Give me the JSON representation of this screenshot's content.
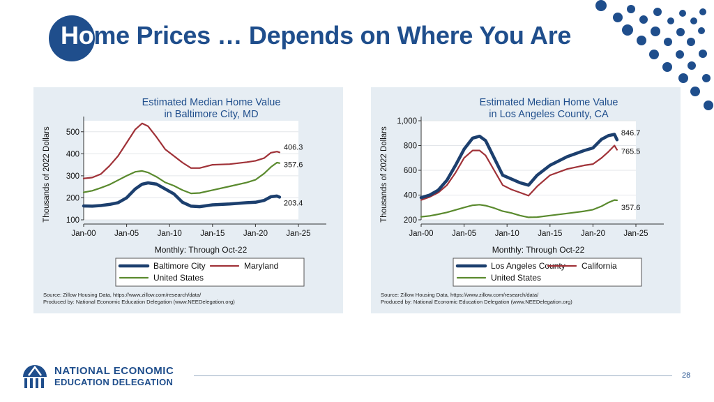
{
  "slide": {
    "title_prefix": "Ho",
    "title_rest": "me Prices … Depends on Where You Are",
    "page_number": "28",
    "org_line1": "NATIONAL ECONOMIC",
    "org_line2": "EDUCATION DELEGATION"
  },
  "colors": {
    "brand": "#1f4e8c",
    "local": "#1c3f6e",
    "state": "#a03238",
    "us": "#5a8a2e",
    "panel_bg": "#e6edf3"
  },
  "chart_data": [
    {
      "type": "line",
      "title": "Estimated Median Home Value",
      "subtitle": "in Baltimore City, MD",
      "ylabel": "Thousands of 2022 Dollars",
      "xlabel": "Monthly: Through Oct-22",
      "ylim": [
        100,
        550
      ],
      "yticks": [
        100,
        200,
        300,
        400,
        500
      ],
      "ytick_labels": [
        "100",
        "200",
        "300",
        "400",
        "500"
      ],
      "xlim": [
        2000,
        2025
      ],
      "xticks": [
        2000,
        2005,
        2010,
        2015,
        2020,
        2025
      ],
      "xtick_labels": [
        "Jan-00",
        "Jan-05",
        "Jan-10",
        "Jan-15",
        "Jan-20",
        "Jan-25"
      ],
      "legend": [
        "Baltimore City",
        "Maryland",
        "United States"
      ],
      "source1": "Source: Zillow Housing Data, https://www.zillow.com/research/data/",
      "source2": "Produced by: National Economic Education Delegation (www.NEEDelegation.org)",
      "series": [
        {
          "name": "Baltimore City",
          "role": "local",
          "end_label": "203.4",
          "x": [
            2000,
            2001,
            2002,
            2003,
            2004,
            2005,
            2006,
            2006.8,
            2007.5,
            2008.5,
            2009.5,
            2010.5,
            2011.5,
            2012.5,
            2013.5,
            2015,
            2017,
            2019,
            2020,
            2021,
            2021.8,
            2022.5,
            2022.8
          ],
          "y": [
            163,
            162,
            165,
            170,
            178,
            200,
            240,
            262,
            268,
            262,
            240,
            218,
            180,
            162,
            160,
            168,
            172,
            178,
            180,
            188,
            205,
            208,
            203.4
          ]
        },
        {
          "name": "Maryland",
          "role": "state",
          "end_label": "406.3",
          "x": [
            2000,
            2001,
            2002,
            2003,
            2004,
            2005,
            2006,
            2006.8,
            2007.5,
            2008.5,
            2009.5,
            2010.5,
            2011.5,
            2012.5,
            2013.5,
            2015,
            2017,
            2019,
            2020,
            2021,
            2021.8,
            2022.5,
            2022.8
          ],
          "y": [
            288,
            292,
            308,
            345,
            390,
            450,
            510,
            538,
            525,
            475,
            420,
            390,
            360,
            335,
            335,
            350,
            353,
            362,
            368,
            380,
            405,
            410,
            406.3
          ]
        },
        {
          "name": "United States",
          "role": "us",
          "end_label": "357.6",
          "x": [
            2000,
            2001,
            2002,
            2003,
            2004,
            2005,
            2006,
            2006.8,
            2007.5,
            2008.5,
            2009.5,
            2010.5,
            2011.5,
            2012.5,
            2013.5,
            2015,
            2017,
            2019,
            2020,
            2021,
            2021.8,
            2022.5,
            2022.8
          ],
          "y": [
            225,
            232,
            245,
            260,
            280,
            300,
            318,
            322,
            315,
            295,
            270,
            255,
            235,
            220,
            222,
            235,
            252,
            270,
            282,
            310,
            340,
            360,
            357.6
          ]
        }
      ]
    },
    {
      "type": "line",
      "title": "Estimated Median Home Value",
      "subtitle": "in Los Angeles County, CA",
      "ylabel": "Thousands of 2022 Dollars",
      "xlabel": "Monthly: Through Oct-22",
      "ylim": [
        200,
        1000
      ],
      "yticks": [
        200,
        400,
        600,
        800,
        1000
      ],
      "ytick_labels": [
        "200",
        "400",
        "600",
        "800",
        "1,000"
      ],
      "xlim": [
        2000,
        2025
      ],
      "xticks": [
        2000,
        2005,
        2010,
        2015,
        2020,
        2025
      ],
      "xtick_labels": [
        "Jan-00",
        "Jan-05",
        "Jan-10",
        "Jan-15",
        "Jan-20",
        "Jan-25"
      ],
      "legend": [
        "Los Angeles County",
        "California",
        "United States"
      ],
      "source1": "Source: Zillow Housing Data, https://www.zillow.com/research/data/",
      "source2": "Produced by: National Economic Education Delegation (www.NEEDelegation.org)",
      "series": [
        {
          "name": "Los Angeles County",
          "role": "local",
          "end_label": "846.7",
          "x": [
            2000,
            2001,
            2002,
            2003,
            2004,
            2005,
            2006,
            2006.8,
            2007.5,
            2008.5,
            2009.5,
            2010.5,
            2011.5,
            2012.5,
            2013.5,
            2015,
            2017,
            2019,
            2020,
            2021,
            2021.8,
            2022.5,
            2022.8
          ],
          "y": [
            380,
            400,
            440,
            520,
            640,
            770,
            860,
            875,
            840,
            700,
            560,
            530,
            500,
            480,
            560,
            640,
            710,
            760,
            780,
            850,
            880,
            890,
            846.7
          ]
        },
        {
          "name": "California",
          "role": "state",
          "end_label": "765.5",
          "x": [
            2000,
            2001,
            2002,
            2003,
            2004,
            2005,
            2006,
            2006.8,
            2007.5,
            2008.5,
            2009.5,
            2010.5,
            2011.5,
            2012.5,
            2013.5,
            2015,
            2017,
            2019,
            2020,
            2021,
            2021.8,
            2022.5,
            2022.8
          ],
          "y": [
            360,
            385,
            420,
            480,
            580,
            700,
            760,
            760,
            720,
            600,
            480,
            445,
            420,
            395,
            470,
            560,
            610,
            640,
            650,
            700,
            750,
            800,
            765.5
          ]
        },
        {
          "name": "United States",
          "role": "us",
          "end_label": "357.6",
          "x": [
            2000,
            2001,
            2002,
            2003,
            2004,
            2005,
            2006,
            2006.8,
            2007.5,
            2008.5,
            2009.5,
            2010.5,
            2011.5,
            2012.5,
            2013.5,
            2015,
            2017,
            2019,
            2020,
            2021,
            2021.8,
            2022.5,
            2022.8
          ],
          "y": [
            225,
            232,
            245,
            260,
            280,
            300,
            318,
            322,
            315,
            295,
            270,
            255,
            235,
            220,
            222,
            235,
            252,
            270,
            282,
            310,
            340,
            360,
            357.6
          ]
        }
      ]
    }
  ]
}
